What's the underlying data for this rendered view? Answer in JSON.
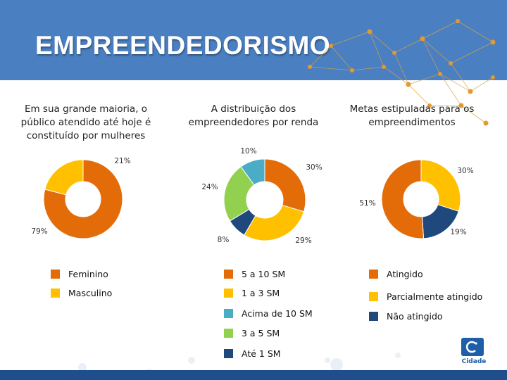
{
  "header": {
    "title": "EMPREENDEDORISMO"
  },
  "colors": {
    "header_bg": "#4a7fc1",
    "orange": "#e36c09",
    "yellow": "#ffc000",
    "cyan": "#4bacc6",
    "green": "#92d050",
    "navy": "#1f497d",
    "dark_blue": "#17375e"
  },
  "chart_data": [
    {
      "type": "pie",
      "variant": "donut",
      "title": "Em sua grande maioria, o público atendido até hoje é constituído por mulheres",
      "slices": [
        {
          "label": "Feminino",
          "value": 79,
          "display": "79%",
          "color": "#e36c09"
        },
        {
          "label": "Masculino",
          "value": 21,
          "display": "21%",
          "color": "#ffc000"
        }
      ]
    },
    {
      "type": "pie",
      "variant": "donut",
      "title": "A distribuição dos empreendedores por renda",
      "slices": [
        {
          "label": "5 a 10 SM",
          "value": 30,
          "display": "30%",
          "color": "#e36c09"
        },
        {
          "label": "1 a 3 SM",
          "value": 29,
          "display": "29%",
          "color": "#ffc000"
        },
        {
          "label": "Até 1 SM",
          "value": 8,
          "display": "8%",
          "color": "#1f497d"
        },
        {
          "label": "3 a 5 SM",
          "value": 24,
          "display": "24%",
          "color": "#92d050"
        },
        {
          "label": "Acima de 10 SM",
          "value": 10,
          "display": "10%",
          "color": "#4bacc6"
        }
      ],
      "legend_order": [
        "5 a 10 SM",
        "1 a 3 SM",
        "Acima de 10 SM",
        "3 a 5 SM",
        "Até 1 SM"
      ]
    },
    {
      "type": "pie",
      "variant": "donut",
      "title": "Metas estipuladas para os empreendimentos",
      "slices": [
        {
          "label": "Parcialmente atingido",
          "value": 30,
          "display": "30%",
          "color": "#ffc000"
        },
        {
          "label": "Não atingido",
          "value": 19,
          "display": "19%",
          "color": "#1f497d"
        },
        {
          "label": "Atingido",
          "value": 51,
          "display": "51%",
          "color": "#e36c09"
        }
      ],
      "legend_order": [
        "Atingido",
        "Parcialmente atingido",
        "Não atingido"
      ]
    }
  ],
  "footer": {
    "logo_text": "Cidade"
  }
}
